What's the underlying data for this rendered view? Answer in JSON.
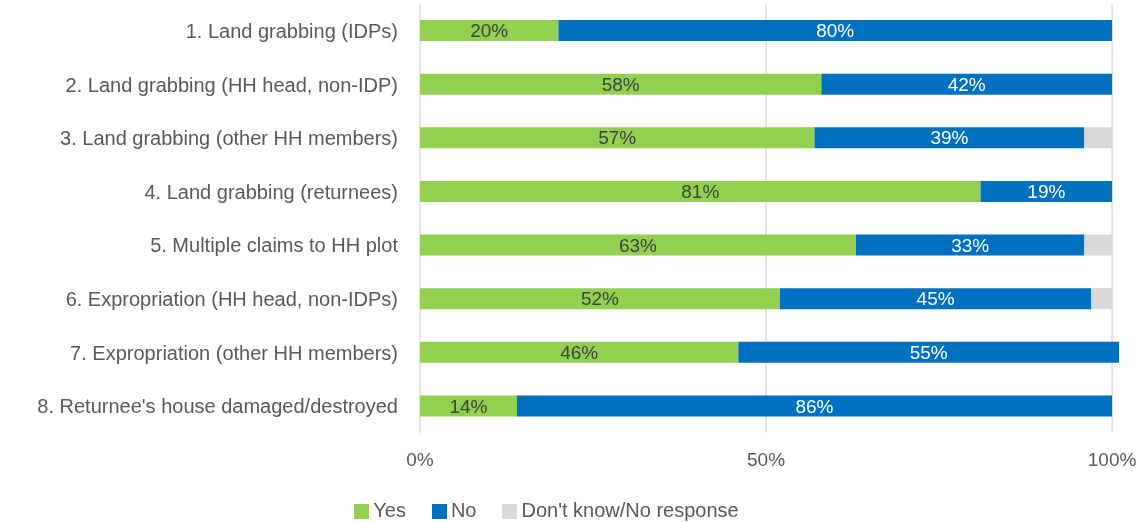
{
  "chart_data": {
    "type": "bar",
    "orientation": "horizontal",
    "stacked": true,
    "categories": [
      "1. Land grabbing (IDPs)",
      "2. Land grabbing (HH head, non-IDP)",
      "3. Land grabbing (other HH members)",
      "4. Land grabbing (returnees)",
      "5. Multiple claims to HH plot",
      "6. Expropriation (HH head, non-IDPs)",
      "7. Expropriation (other HH members)",
      "8. Returnee's house damaged/destroyed"
    ],
    "series": [
      {
        "name": "Yes",
        "color": "#92d050",
        "values": [
          20,
          58,
          57,
          81,
          63,
          52,
          46,
          14
        ],
        "value_labels": [
          "20%",
          "58%",
          "57%",
          "81%",
          "63%",
          "52%",
          "46%",
          "14%"
        ]
      },
      {
        "name": "No",
        "color": "#0070c0",
        "values": [
          80,
          42,
          39,
          19,
          33,
          45,
          55,
          86
        ],
        "value_labels": [
          "80%",
          "42%",
          "39%",
          "19%",
          "33%",
          "45%",
          "55%",
          "86%"
        ]
      },
      {
        "name": "Don't know/No response",
        "color": "#d9d9d9",
        "values": [
          null,
          null,
          4,
          null,
          4,
          3,
          null,
          null
        ]
      }
    ],
    "xlim": [
      0,
      101
    ],
    "xticks": [
      {
        "value": 0,
        "label": "0%"
      },
      {
        "value": 50,
        "label": "50%"
      },
      {
        "value": 100,
        "label": "100%"
      }
    ],
    "grid": "x",
    "legend": "bottom"
  }
}
